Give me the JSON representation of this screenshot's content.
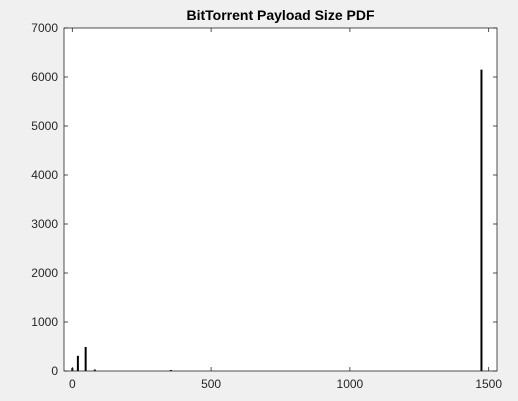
{
  "chart_data": {
    "type": "bar",
    "title": "BitTorrent Payload Size PDF",
    "xlabel": "",
    "ylabel": "",
    "xlim": [
      -30,
      1530
    ],
    "ylim": [
      0,
      7000
    ],
    "xticks": [
      0,
      500,
      1000,
      1500
    ],
    "yticks": [
      0,
      1000,
      2000,
      3000,
      4000,
      5000,
      6000,
      7000
    ],
    "grid": false,
    "x": [
      0,
      20,
      48,
      81,
      355,
      1474
    ],
    "values": [
      60,
      310,
      490,
      30,
      20,
      6150
    ],
    "bar_color": "#000000"
  },
  "colors": {
    "figure_background": "#f0f0f0",
    "axes_background": "#ffffff",
    "axes_line": "#262626",
    "bar": "#000000"
  }
}
